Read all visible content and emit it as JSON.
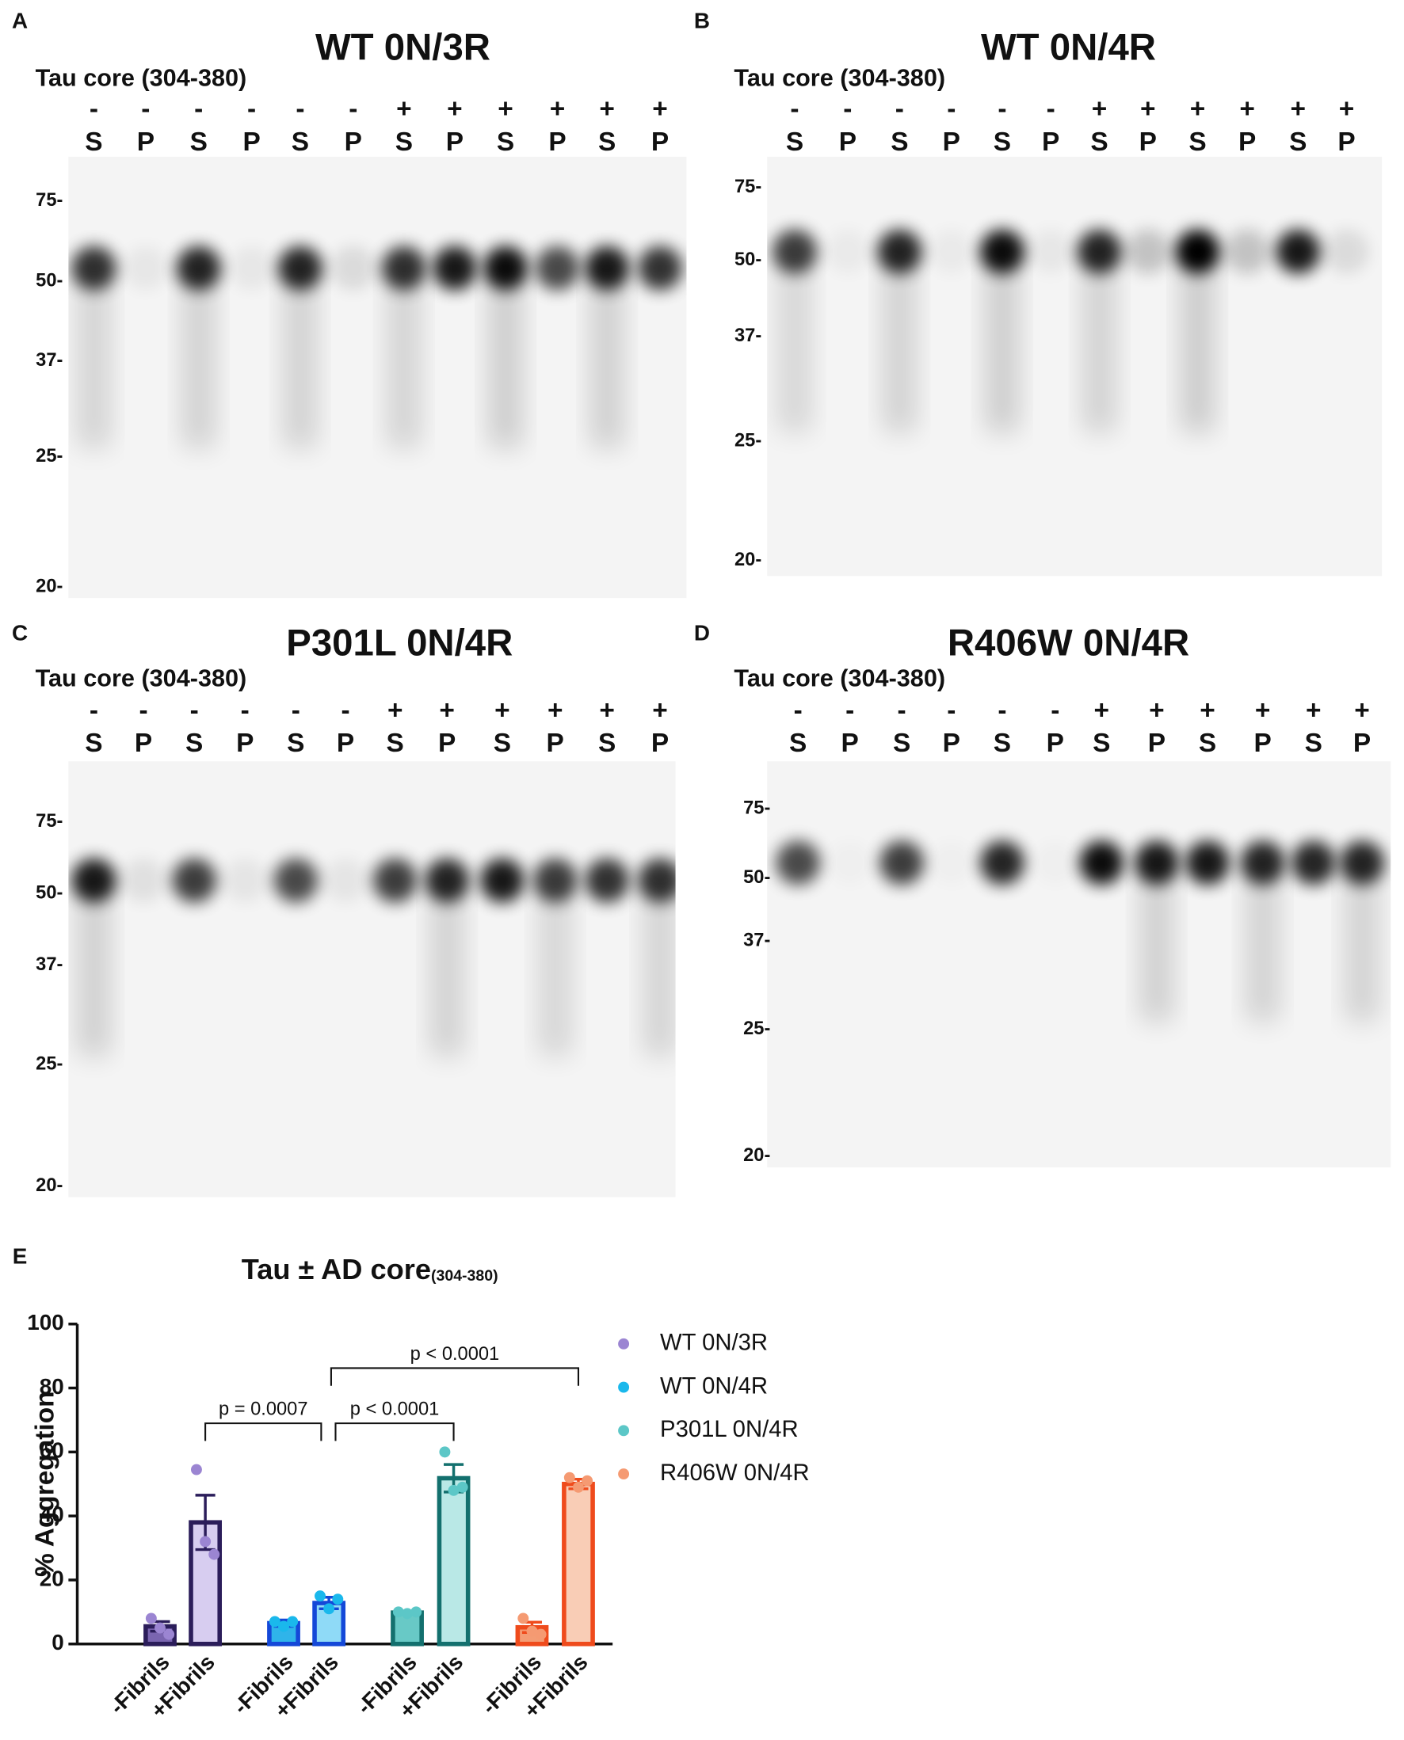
{
  "blots": [
    {
      "letter": "A",
      "title": "WT 0N/3R",
      "antibody": "Tau core (304-380)",
      "signs": [
        "-",
        "-",
        "-",
        "-",
        "-",
        "-",
        "+",
        "+",
        "+",
        "+",
        "+",
        "+"
      ],
      "lanes": [
        "S",
        "P",
        "S",
        "P",
        "S",
        "P",
        "S",
        "P",
        "S",
        "P",
        "S",
        "P"
      ],
      "markers": [
        "75-",
        "50-",
        "37-",
        "25-",
        "20-"
      ]
    },
    {
      "letter": "B",
      "title": "WT 0N/4R",
      "antibody": "Tau core (304-380)",
      "signs": [
        "-",
        "-",
        "-",
        "-",
        "-",
        "-",
        "+",
        "+",
        "+",
        "+",
        "+",
        "+"
      ],
      "lanes": [
        "S",
        "P",
        "S",
        "P",
        "S",
        "P",
        "S",
        "P",
        "S",
        "P",
        "S",
        "P"
      ],
      "markers": [
        "75-",
        "50-",
        "37-",
        "25-",
        "20-"
      ]
    },
    {
      "letter": "C",
      "title": "P301L 0N/4R",
      "antibody": "Tau core (304-380)",
      "signs": [
        "-",
        "-",
        "-",
        "-",
        "-",
        "-",
        "+",
        "+",
        "+",
        "+",
        "+",
        "+"
      ],
      "lanes": [
        "S",
        "P",
        "S",
        "P",
        "S",
        "P",
        "S",
        "P",
        "S",
        "P",
        "S",
        "P"
      ],
      "markers": [
        "75-",
        "50-",
        "37-",
        "25-",
        "20-"
      ]
    },
    {
      "letter": "D",
      "title": "R406W 0N/4R",
      "antibody": "Tau core (304-380)",
      "signs": [
        "-",
        "-",
        "-",
        "-",
        "-",
        "-",
        "+",
        "+",
        "+",
        "+",
        "+",
        "+"
      ],
      "lanes": [
        "S",
        "P",
        "S",
        "P",
        "S",
        "P",
        "S",
        "P",
        "S",
        "P",
        "S",
        "P"
      ],
      "markers": [
        "75-",
        "50-",
        "37-",
        "25-",
        "20-"
      ]
    }
  ],
  "chart_data": {
    "type": "bar",
    "letter": "E",
    "title": "Tau ± AD core",
    "title_subscript": "(304-380)",
    "ylabel": "% Aggregation",
    "ylim": [
      0,
      100
    ],
    "yticks": [
      0,
      20,
      40,
      60,
      80,
      100
    ],
    "categories": [
      "-Fibrils",
      "+Fibrils"
    ],
    "series": [
      {
        "name": "WT 0N/3R",
        "color": "#9b85d2",
        "bar_fill": [
          "#7a65b0",
          "#d7cdf0"
        ],
        "bar_edge": "#2b1d5a",
        "values": [
          5.5,
          38
        ],
        "errors": [
          1.5,
          8.5
        ],
        "points": [
          [
            8,
            5,
            3
          ],
          [
            54.5,
            32,
            28
          ]
        ]
      },
      {
        "name": "WT 0N/4R",
        "color": "#1ab8ec",
        "bar_fill": [
          "#2fb4ea",
          "#8fdaf7"
        ],
        "bar_edge": "#1448d8",
        "values": [
          6.5,
          12.8
        ],
        "errors": [
          1,
          1.8
        ],
        "points": [
          [
            7,
            5.5,
            7
          ],
          [
            15,
            11,
            14
          ]
        ]
      },
      {
        "name": "P301L 0N/4R",
        "color": "#5cc7c7",
        "bar_fill": [
          "#68c9c6",
          "#b9e8e6"
        ],
        "bar_edge": "#13706e",
        "values": [
          9.8,
          51.8
        ],
        "errors": [
          0.5,
          4.3
        ],
        "points": [
          [
            10,
            9.5,
            10
          ],
          [
            60,
            48,
            49
          ]
        ]
      },
      {
        "name": "R406W 0N/4R",
        "color": "#f59a72",
        "bar_fill": [
          "#f49c74",
          "#f9cdb6"
        ],
        "bar_edge": "#ef4b1c",
        "values": [
          5.2,
          50
        ],
        "errors": [
          1.6,
          1.5
        ],
        "points": [
          [
            8,
            4,
            3
          ],
          [
            52,
            49,
            51
          ]
        ]
      }
    ],
    "annotations": [
      "p = 0.0007",
      "p < 0.0001",
      "p < 0.0001"
    ]
  }
}
